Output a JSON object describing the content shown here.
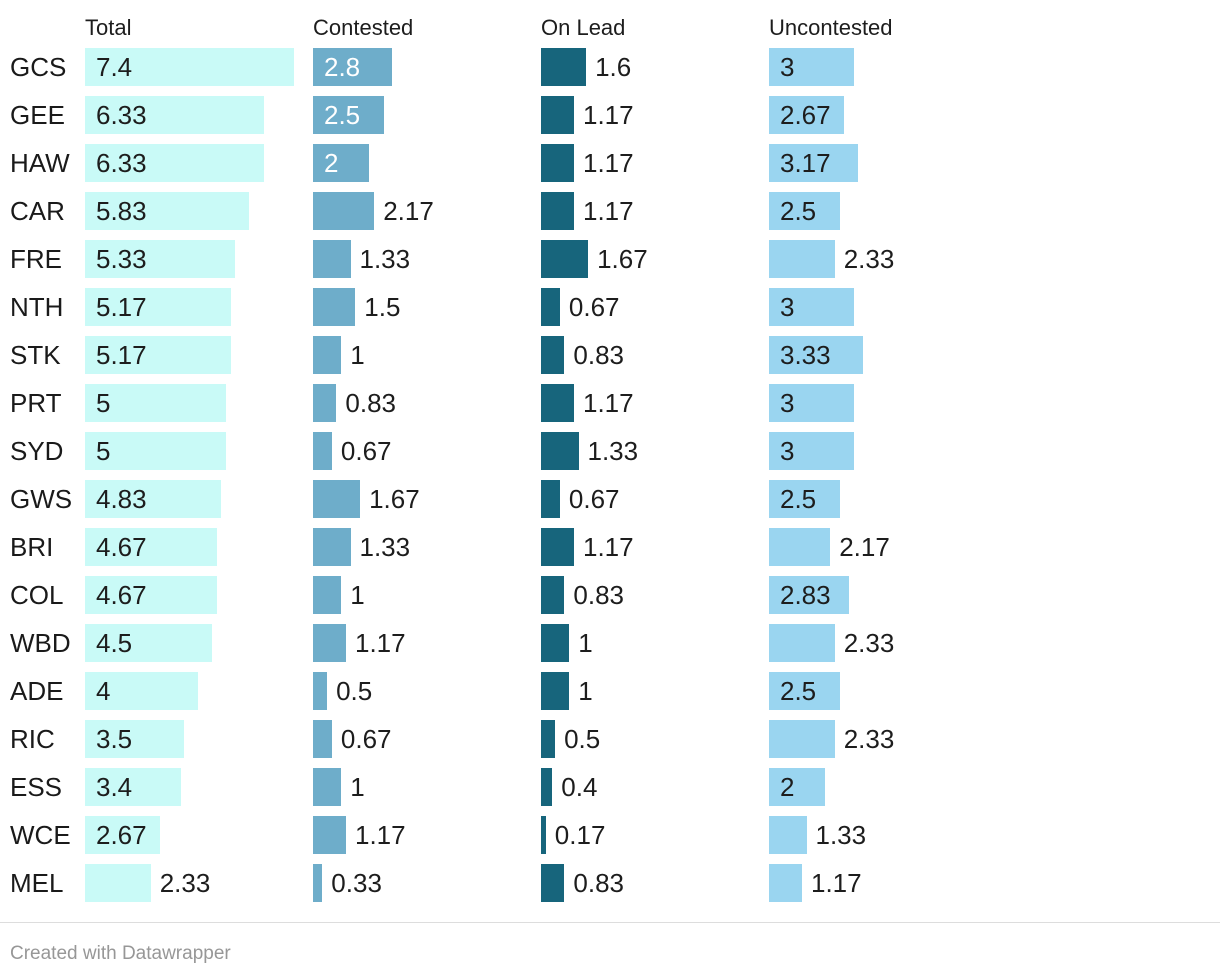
{
  "chart_data": {
    "type": "bar",
    "orientation": "horizontal",
    "grid": false,
    "legend": "none",
    "xlim": [
      0,
      8.08
    ],
    "categories": [
      "GCS",
      "GEE",
      "HAW",
      "CAR",
      "FRE",
      "NTH",
      "STK",
      "PRT",
      "SYD",
      "GWS",
      "BRI",
      "COL",
      "WBD",
      "ADE",
      "RIC",
      "ESS",
      "WCE",
      "MEL"
    ],
    "series": [
      {
        "name": "Total",
        "color": "#C9FAF7",
        "inside_label_color": "#1d1d1d",
        "values": [
          7.4,
          6.33,
          6.33,
          5.83,
          5.33,
          5.17,
          5.17,
          5,
          5,
          4.83,
          4.67,
          4.67,
          4.5,
          4,
          3.5,
          3.4,
          2.67,
          2.33
        ],
        "labels": [
          "7.4",
          "6.33",
          "6.33",
          "5.83",
          "5.33",
          "5.17",
          "5.17",
          "5",
          "5",
          "4.83",
          "4.67",
          "4.67",
          "4.5",
          "4",
          "3.5",
          "3.4",
          "2.67",
          "2.33"
        ],
        "label_inside": [
          true,
          true,
          true,
          true,
          true,
          true,
          true,
          true,
          true,
          true,
          true,
          true,
          true,
          true,
          true,
          true,
          true,
          false
        ]
      },
      {
        "name": "Contested",
        "color": "#6EADCA",
        "inside_label_color": "#ffffff",
        "values": [
          2.8,
          2.5,
          2,
          2.17,
          1.33,
          1.5,
          1,
          0.83,
          0.67,
          1.67,
          1.33,
          1,
          1.17,
          0.5,
          0.67,
          1,
          1.17,
          0.33
        ],
        "labels": [
          "2.8",
          "2.5",
          "2",
          "2.17",
          "1.33",
          "1.5",
          "1",
          "0.83",
          "0.67",
          "1.67",
          "1.33",
          "1",
          "1.17",
          "0.5",
          "0.67",
          "1",
          "1.17",
          "0.33"
        ],
        "label_inside": [
          true,
          true,
          true,
          false,
          false,
          false,
          false,
          false,
          false,
          false,
          false,
          false,
          false,
          false,
          false,
          false,
          false,
          false
        ]
      },
      {
        "name": "On Lead",
        "color": "#17657C",
        "inside_label_color": "#ffffff",
        "values": [
          1.6,
          1.17,
          1.17,
          1.17,
          1.67,
          0.67,
          0.83,
          1.17,
          1.33,
          0.67,
          1.17,
          0.83,
          1,
          1,
          0.5,
          0.4,
          0.17,
          0.83
        ],
        "labels": [
          "1.6",
          "1.17",
          "1.17",
          "1.17",
          "1.67",
          "0.67",
          "0.83",
          "1.17",
          "1.33",
          "0.67",
          "1.17",
          "0.83",
          "1",
          "1",
          "0.5",
          "0.4",
          "0.17",
          "0.83"
        ],
        "label_inside": [
          false,
          false,
          false,
          false,
          false,
          false,
          false,
          false,
          false,
          false,
          false,
          false,
          false,
          false,
          false,
          false,
          false,
          false
        ]
      },
      {
        "name": "Uncontested",
        "color": "#9AD5F0",
        "inside_label_color": "#1d1d1d",
        "values": [
          3,
          2.67,
          3.17,
          2.5,
          2.33,
          3,
          3.33,
          3,
          3,
          2.5,
          2.17,
          2.83,
          2.33,
          2.5,
          2.33,
          2,
          1.33,
          1.17
        ],
        "labels": [
          "3",
          "2.67",
          "3.17",
          "2.5",
          "2.33",
          "3",
          "3.33",
          "3",
          "3",
          "2.5",
          "2.17",
          "2.83",
          "2.33",
          "2.5",
          "2.33",
          "2",
          "1.33",
          "1.17"
        ],
        "label_inside": [
          true,
          true,
          true,
          true,
          false,
          true,
          true,
          true,
          true,
          true,
          false,
          true,
          false,
          true,
          false,
          true,
          false,
          false
        ]
      }
    ],
    "text_color": "#1d1d1d"
  },
  "footer": {
    "text": "Created with Datawrapper"
  }
}
